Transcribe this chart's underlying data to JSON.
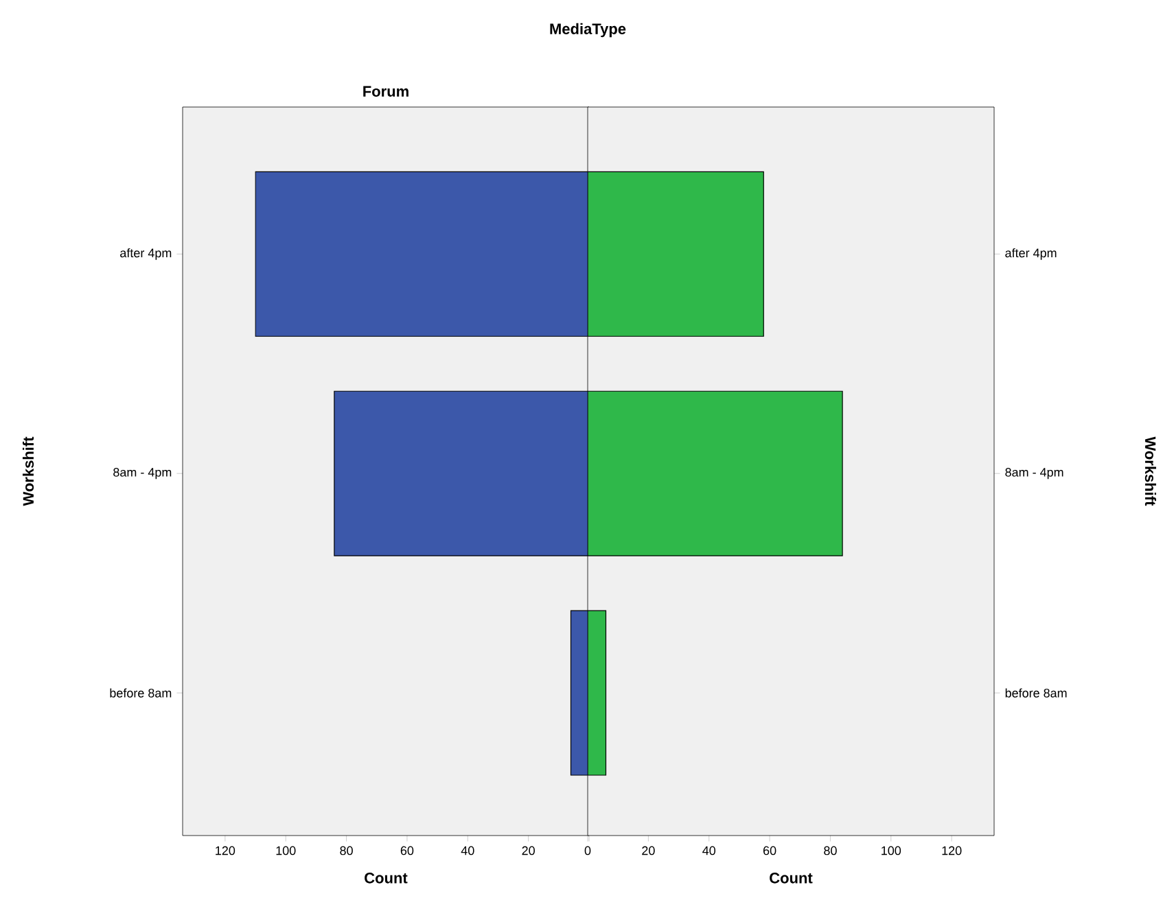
{
  "chart_data": [
    {
      "type": "bar",
      "orientation": "horizontal",
      "title": "Forum",
      "annotations": [
        "MediaType"
      ],
      "xlabel": "Count",
      "ylabel": "Workshift",
      "categories": [
        "after 4pm",
        "8am - 4pm",
        "before 8am"
      ],
      "series": [
        {
          "color": "#3c58aa",
          "values": [
            110,
            84,
            6
          ]
        }
      ],
      "xlim": [
        134,
        0
      ],
      "xticks": [
        120,
        100,
        80,
        60,
        40,
        20,
        {
          "value": 0,
          "label": null
        }
      ]
    },
    {
      "type": "bar",
      "orientation": "horizontal",
      "xlabel": "Count",
      "ylabel": "Workshift",
      "categories": [
        "after 4pm",
        "8am - 4pm",
        "before 8am"
      ],
      "series": [
        {
          "color": "#2fb84a",
          "values": [
            58,
            84,
            6
          ]
        }
      ],
      "xlim": [
        0,
        134
      ],
      "xticks": [
        0,
        20,
        40,
        60,
        80,
        100,
        120
      ]
    }
  ]
}
